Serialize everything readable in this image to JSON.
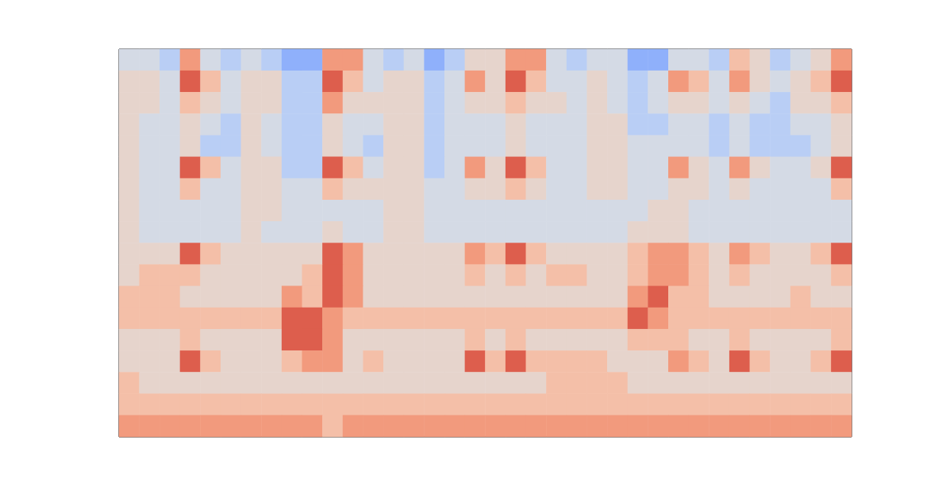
{
  "chart_data": {
    "type": "heatmap",
    "tick_labels": false,
    "grid": false,
    "color_range": [
      0,
      9
    ],
    "cells": [
      [
        4,
        4,
        3,
        7,
        4,
        3,
        4,
        3,
        2,
        2,
        7,
        7,
        4,
        3,
        4,
        2,
        3,
        5,
        5,
        7,
        7,
        4,
        3,
        4,
        4,
        2,
        2,
        4,
        4,
        3,
        6,
        5,
        3,
        4,
        5,
        7
      ],
      [
        5,
        5,
        4,
        8,
        6,
        4,
        5,
        5,
        3,
        3,
        8,
        6,
        4,
        5,
        5,
        3,
        4,
        7,
        5,
        8,
        6,
        4,
        4,
        5,
        4,
        3,
        4,
        7,
        6,
        4,
        7,
        5,
        4,
        5,
        6,
        8
      ],
      [
        5,
        5,
        4,
        6,
        5,
        4,
        5,
        5,
        3,
        3,
        7,
        5,
        5,
        5,
        5,
        3,
        4,
        5,
        5,
        6,
        5,
        5,
        4,
        5,
        4,
        3,
        4,
        5,
        5,
        4,
        5,
        4,
        3,
        5,
        5,
        6
      ],
      [
        5,
        4,
        4,
        5,
        4,
        3,
        5,
        4,
        3,
        3,
        5,
        4,
        4,
        5,
        5,
        3,
        4,
        4,
        4,
        5,
        4,
        4,
        4,
        5,
        5,
        3,
        3,
        4,
        4,
        3,
        4,
        3,
        3,
        4,
        4,
        5
      ],
      [
        5,
        4,
        4,
        5,
        3,
        3,
        5,
        4,
        3,
        3,
        5,
        4,
        3,
        5,
        5,
        3,
        4,
        4,
        4,
        5,
        4,
        4,
        4,
        5,
        5,
        4,
        4,
        4,
        4,
        3,
        4,
        3,
        3,
        3,
        4,
        5
      ],
      [
        5,
        4,
        4,
        8,
        6,
        4,
        5,
        5,
        3,
        3,
        8,
        6,
        4,
        5,
        5,
        3,
        4,
        7,
        5,
        8,
        6,
        4,
        4,
        5,
        5,
        4,
        4,
        7,
        5,
        4,
        7,
        5,
        4,
        4,
        5,
        8
      ],
      [
        5,
        4,
        4,
        6,
        4,
        4,
        5,
        5,
        4,
        4,
        6,
        5,
        5,
        5,
        5,
        4,
        4,
        5,
        5,
        6,
        5,
        4,
        4,
        5,
        5,
        4,
        4,
        5,
        5,
        4,
        5,
        4,
        4,
        4,
        4,
        6
      ],
      [
        5,
        4,
        4,
        4,
        4,
        4,
        5,
        5,
        4,
        4,
        4,
        4,
        4,
        5,
        5,
        4,
        4,
        4,
        4,
        4,
        4,
        4,
        4,
        4,
        4,
        4,
        5,
        5,
        4,
        4,
        4,
        4,
        4,
        4,
        4,
        4
      ],
      [
        5,
        4,
        4,
        4,
        4,
        4,
        5,
        4,
        4,
        4,
        5,
        4,
        4,
        5,
        5,
        4,
        4,
        4,
        4,
        4,
        4,
        4,
        4,
        4,
        4,
        5,
        5,
        5,
        4,
        4,
        4,
        4,
        4,
        4,
        4,
        4
      ],
      [
        5,
        5,
        5,
        8,
        6,
        5,
        5,
        5,
        5,
        5,
        8,
        7,
        5,
        5,
        5,
        5,
        5,
        7,
        6,
        8,
        6,
        5,
        5,
        5,
        5,
        6,
        7,
        7,
        6,
        5,
        7,
        6,
        5,
        5,
        6,
        8
      ],
      [
        5,
        6,
        6,
        6,
        5,
        5,
        5,
        5,
        5,
        6,
        8,
        7,
        5,
        5,
        5,
        5,
        5,
        6,
        5,
        6,
        5,
        6,
        6,
        5,
        5,
        6,
        7,
        7,
        6,
        5,
        6,
        5,
        5,
        5,
        5,
        6
      ],
      [
        6,
        6,
        6,
        5,
        5,
        5,
        5,
        5,
        7,
        6,
        8,
        7,
        5,
        5,
        5,
        5,
        5,
        5,
        5,
        5,
        5,
        5,
        5,
        5,
        5,
        7,
        8,
        6,
        6,
        5,
        5,
        5,
        5,
        6,
        5,
        5
      ],
      [
        6,
        6,
        6,
        6,
        6,
        6,
        6,
        6,
        8,
        8,
        7,
        6,
        6,
        6,
        6,
        6,
        6,
        6,
        6,
        6,
        6,
        6,
        6,
        6,
        6,
        8,
        7,
        6,
        6,
        6,
        6,
        6,
        6,
        6,
        6,
        6
      ],
      [
        5,
        5,
        5,
        6,
        5,
        5,
        5,
        5,
        8,
        8,
        7,
        5,
        5,
        5,
        5,
        5,
        5,
        6,
        5,
        6,
        5,
        5,
        5,
        5,
        5,
        6,
        6,
        6,
        5,
        5,
        6,
        5,
        5,
        5,
        5,
        6
      ],
      [
        5,
        5,
        5,
        8,
        6,
        5,
        5,
        5,
        6,
        7,
        7,
        5,
        6,
        5,
        5,
        5,
        5,
        8,
        6,
        8,
        6,
        6,
        6,
        6,
        5,
        5,
        5,
        7,
        6,
        5,
        8,
        6,
        5,
        5,
        6,
        8
      ],
      [
        6,
        5,
        5,
        5,
        5,
        5,
        5,
        5,
        5,
        5,
        5,
        5,
        5,
        5,
        5,
        5,
        5,
        5,
        5,
        5,
        5,
        6,
        6,
        6,
        6,
        5,
        5,
        5,
        5,
        5,
        5,
        5,
        5,
        5,
        5,
        5
      ],
      [
        6,
        6,
        6,
        6,
        6,
        6,
        6,
        6,
        6,
        6,
        6,
        6,
        6,
        6,
        6,
        6,
        6,
        6,
        6,
        6,
        6,
        6,
        6,
        6,
        6,
        6,
        6,
        6,
        6,
        6,
        6,
        6,
        6,
        6,
        6,
        6
      ],
      [
        7,
        7,
        7,
        7,
        7,
        7,
        7,
        7,
        7,
        7,
        6,
        7,
        7,
        7,
        7,
        7,
        7,
        7,
        7,
        7,
        7,
        7,
        7,
        7,
        7,
        7,
        7,
        7,
        7,
        7,
        7,
        7,
        7,
        7,
        7,
        7
      ]
    ]
  }
}
